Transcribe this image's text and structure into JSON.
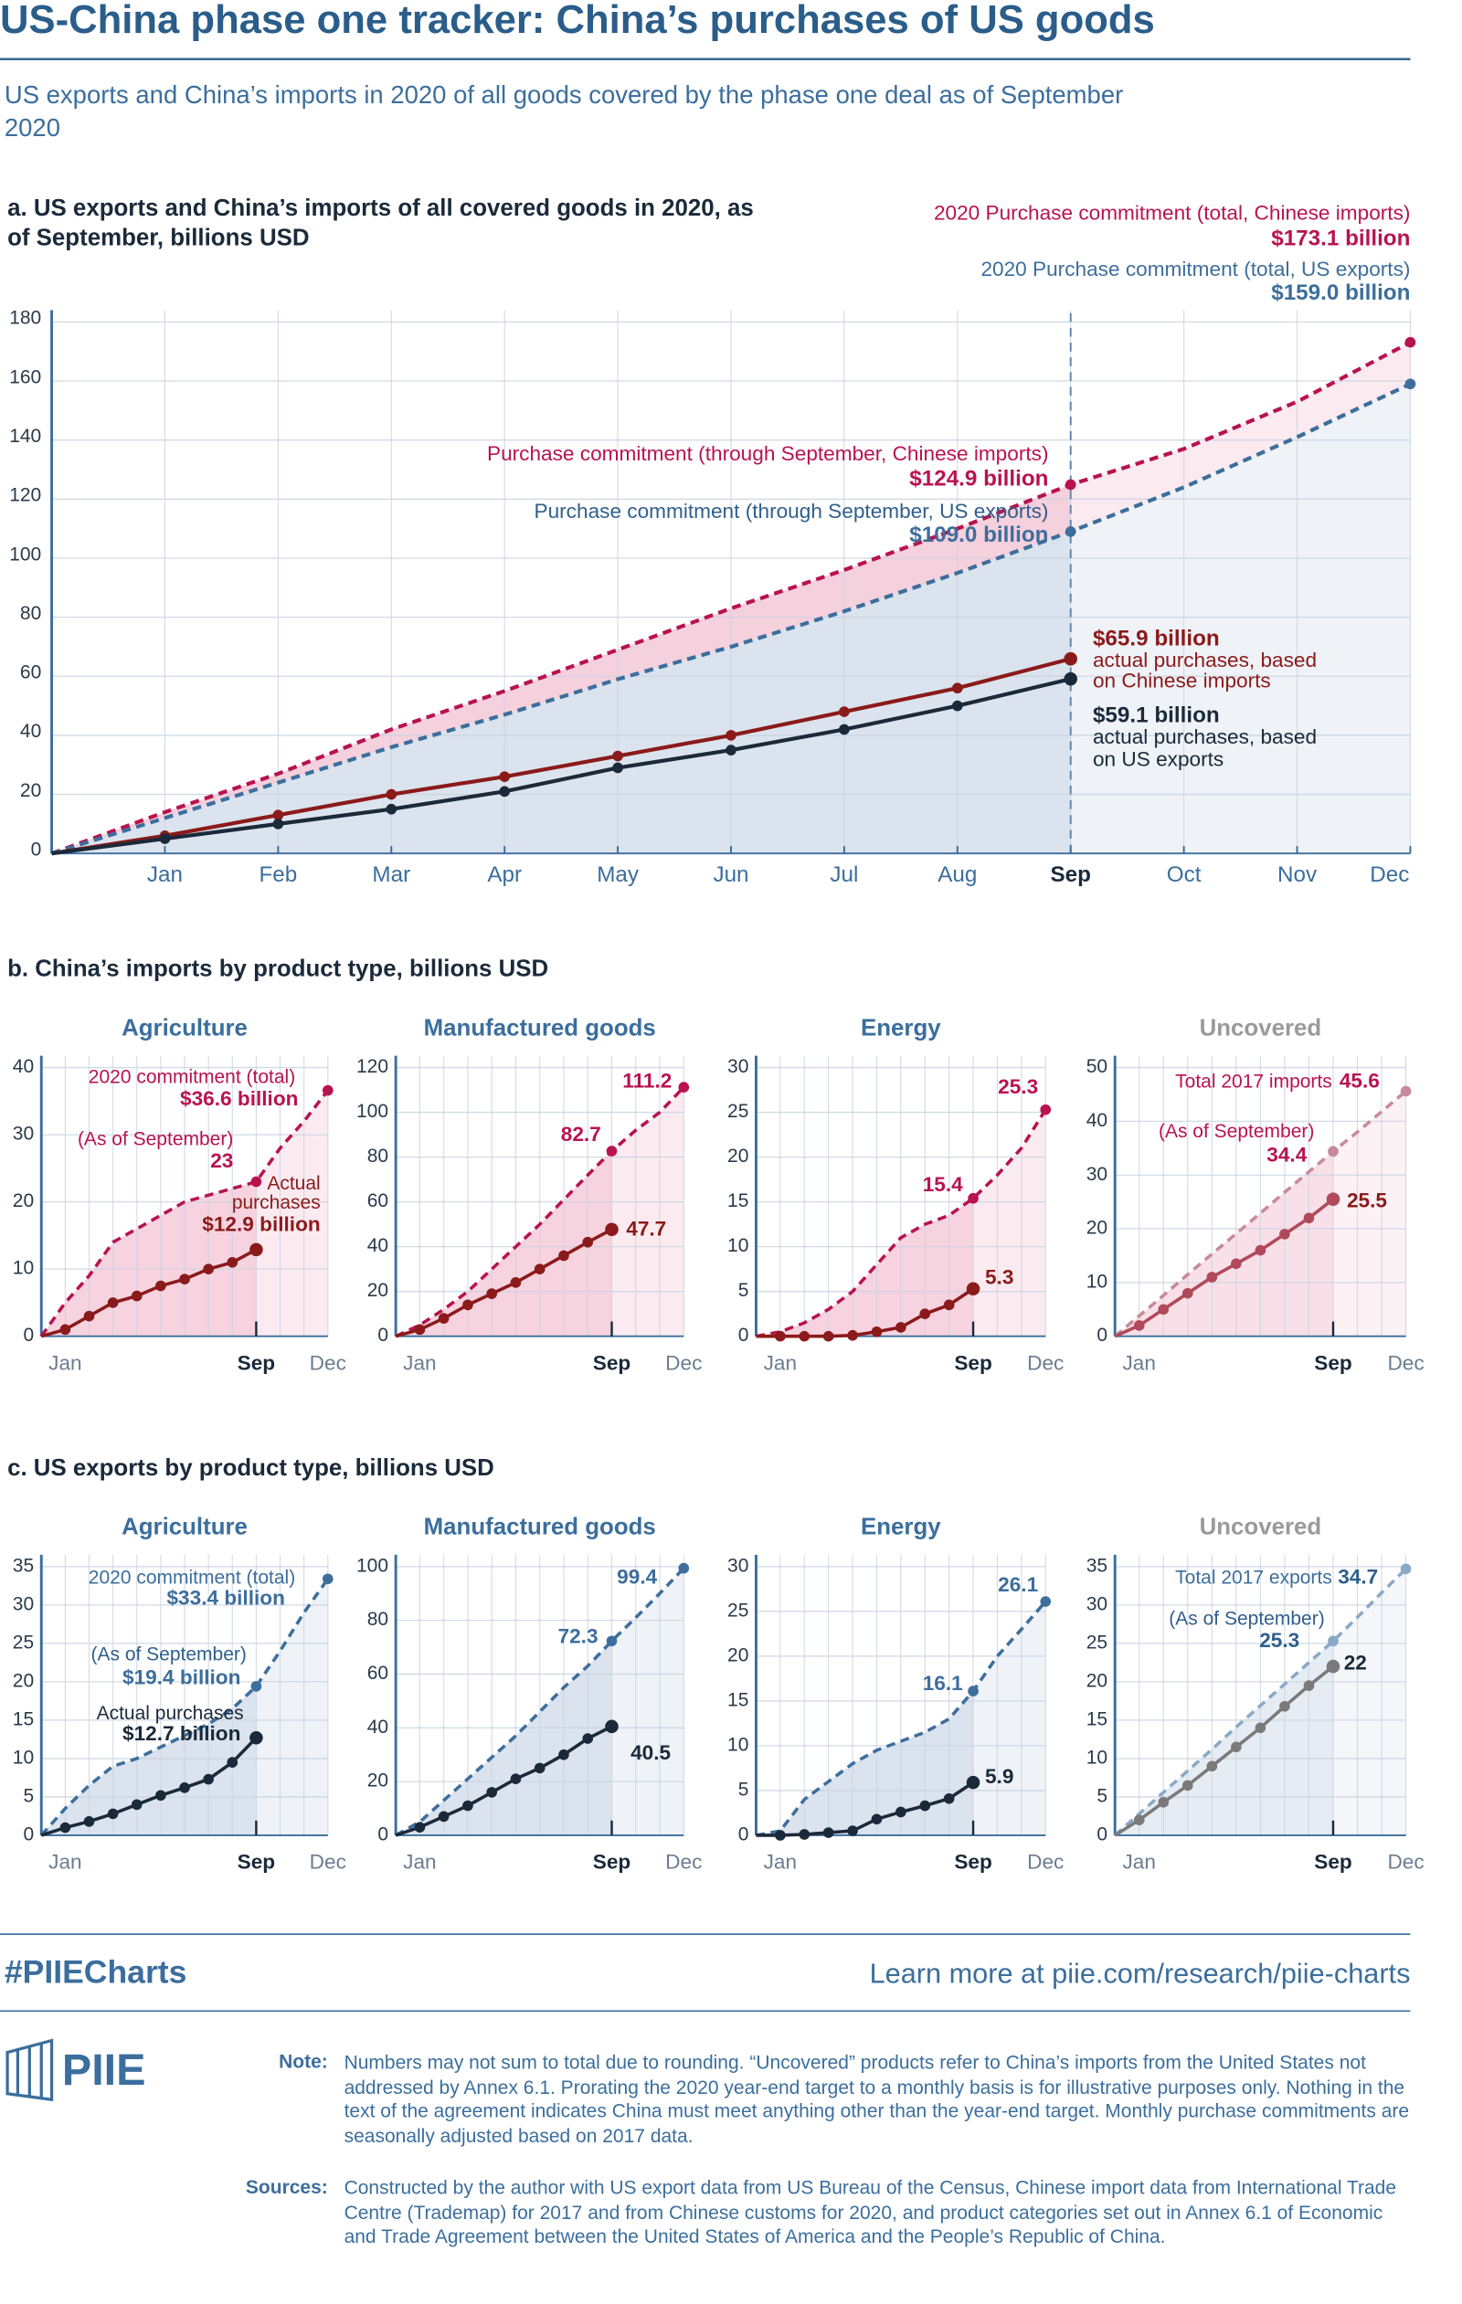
{
  "title": "US-China phase one tracker: China’s purchases of US goods",
  "subtitle": "US exports and China’s imports in 2020 of all goods covered by the phase one deal as of September 2020",
  "section_b_title": "b. China’s imports by product type, billions USD",
  "section_c_title": "c. US exports by product type, billions USD",
  "hashtag": "#PIIECharts",
  "learn_more": "Learn more at piie.com/research/piie-charts",
  "logo": "PIIE",
  "note_label": "Note:",
  "note": "Numbers may not sum to total due to rounding. “Uncovered” products refer to China’s imports from the United States not addressed by Annex 6.1. Prorating the 2020 year-end target to a monthly basis is for illustrative purposes only. Nothing in the text of the agreement indicates China must meet anything other than the year-end target. Monthly purchase commitments are seasonally adjusted based on 2017 data.",
  "sources_label": "Sources:",
  "sources": "Constructed by the author with US export data from US Bureau of the Census, Chinese import data from International Trade Centre (Trademap) for 2017 and from Chinese customs for 2020, and product categories set out in Annex 6.1 of Economic and Trade Agreement between the United States of America and the People’s Republic of China.",
  "chart_data": [
    {
      "type": "line",
      "title": "a. US exports and China’s imports of all covered goods in 2020, as of September, billions USD",
      "categories": [
        null,
        "Jan",
        "Feb",
        "Mar",
        "Apr",
        "May",
        "Jun",
        "Jul",
        "Aug",
        "Sep",
        "Oct",
        "Nov",
        "Dec"
      ],
      "ylim": [
        0,
        180
      ],
      "yticks": [
        0,
        20,
        40,
        60,
        80,
        100,
        120,
        140,
        160,
        180
      ],
      "grid": true,
      "series": [
        {
          "color": "#b8134f",
          "fill": "#f5d0dd",
          "dash": true,
          "values": [
            0,
            14,
            27,
            42,
            55,
            69,
            83,
            96,
            110,
            124.9,
            137,
            153,
            173.1
          ],
          "value_labels": [
            null,
            null,
            null,
            null,
            null,
            null,
            null,
            null,
            null,
            "$124.9 billion",
            null,
            null,
            "$173.1 billion"
          ]
        },
        {
          "color": "#3d6e9c",
          "fill": "#dbe3ee",
          "dash": true,
          "values": [
            0,
            12,
            24,
            36,
            47,
            59,
            70,
            82,
            95,
            109.0,
            124,
            141,
            159.0
          ],
          "value_labels": [
            null,
            null,
            null,
            null,
            null,
            null,
            null,
            null,
            null,
            "$109.0 billion",
            null,
            null,
            "$159.0 billion"
          ]
        },
        {
          "color": "#8b1a1a",
          "values": [
            0,
            6,
            13,
            20,
            26,
            33,
            40,
            48,
            56,
            65.9,
            null,
            null,
            null
          ],
          "value_labels": [
            null,
            null,
            null,
            null,
            null,
            null,
            null,
            null,
            null,
            "$65.9 billion",
            null,
            null,
            null
          ]
        },
        {
          "color": "#1b2a3a",
          "values": [
            0,
            5,
            10,
            15,
            21,
            29,
            35,
            42,
            50,
            59.1,
            null,
            null,
            null
          ],
          "value_labels": [
            null,
            null,
            null,
            null,
            null,
            null,
            null,
            null,
            null,
            "$59.1 billion",
            null,
            null,
            null
          ]
        }
      ],
      "annotations": [
        {
          "text": "2020 Purchase commitment (total, Chinese imports)",
          "color": "#b8134f"
        },
        {
          "text": "2020 Purchase commitment (total, US exports)",
          "color": "#3d6e9c"
        },
        {
          "text": "Purchase commitment (through September, Chinese imports)",
          "color": "#b8134f"
        },
        {
          "text": "Purchase commitment (through September, US exports)",
          "color": "#2f5f8c"
        },
        {
          "text": "actual purchases, based",
          "color": "#8b1a1a"
        },
        {
          "text": "on Chinese imports",
          "color": "#8b1a1a"
        },
        {
          "text": "actual purchases, based",
          "color": "#1b2a3a"
        },
        {
          "text": "on US exports",
          "color": "#1b2a3a"
        }
      ]
    },
    {
      "type": "line",
      "title": "Agriculture",
      "title_color": "#3b6e9d",
      "categories": [
        null,
        "Jan",
        null,
        null,
        null,
        null,
        null,
        null,
        null,
        "Sep",
        null,
        null,
        "Dec"
      ],
      "ylim": [
        0,
        40
      ],
      "yticks": [
        0,
        10,
        20,
        30,
        40
      ],
      "grid": true,
      "series": [
        {
          "color": "#b8134f",
          "fill": "#f7d3df",
          "dash": true,
          "values": [
            0,
            5,
            9,
            14,
            16,
            18,
            20,
            21,
            22,
            23,
            28,
            32,
            36.6
          ],
          "value_labels": [
            null,
            null,
            null,
            null,
            null,
            null,
            null,
            null,
            null,
            null,
            null,
            null,
            "$36.6 billion"
          ]
        },
        {
          "color": "#8b1a1a",
          "values": [
            0,
            1,
            3,
            5,
            6,
            7.5,
            8.5,
            10,
            11,
            12.9,
            null,
            null,
            null
          ],
          "value_labels": [
            null,
            null,
            null,
            null,
            null,
            null,
            null,
            null,
            null,
            "$12.9 billion",
            null,
            null,
            null
          ]
        }
      ],
      "annotations": [
        {
          "text": "2020 commitment (total)",
          "color": "#b8134f"
        },
        {
          "text": "(As of September)",
          "color": "#b8134f"
        },
        {
          "text": "Actual",
          "color": "#8b1a1a"
        },
        {
          "text": "purchases",
          "color": "#8b1a1a"
        }
      ]
    },
    {
      "type": "line",
      "title": "Manufactured goods",
      "title_color": "#3b6e9d",
      "categories": [
        null,
        "Jan",
        null,
        null,
        null,
        null,
        null,
        null,
        null,
        "Sep",
        null,
        null,
        "Dec"
      ],
      "ylim": [
        0,
        120
      ],
      "yticks": [
        0,
        20,
        40,
        60,
        80,
        100,
        120
      ],
      "grid": true,
      "series": [
        {
          "color": "#b8134f",
          "fill": "#f7d3df",
          "dash": true,
          "values": [
            0,
            5,
            12,
            20,
            30,
            40,
            50,
            61,
            72,
            82.7,
            92,
            100,
            111.2
          ]
        },
        {
          "color": "#8b1a1a",
          "values": [
            0,
            3,
            8,
            14,
            19,
            24,
            30,
            36,
            42,
            47.7,
            null,
            null,
            null
          ]
        }
      ]
    },
    {
      "type": "line",
      "title": "Energy",
      "title_color": "#3b6e9d",
      "categories": [
        null,
        "Jan",
        null,
        null,
        null,
        null,
        null,
        null,
        null,
        "Sep",
        null,
        null,
        "Dec"
      ],
      "ylim": [
        0,
        30
      ],
      "yticks": [
        0,
        5,
        10,
        15,
        20,
        25,
        30
      ],
      "grid": true,
      "series": [
        {
          "color": "#b8134f",
          "fill": "#f7d3df",
          "dash": true,
          "values": [
            0,
            0.5,
            1.5,
            3,
            5,
            8,
            11,
            12.5,
            13.5,
            15.4,
            18,
            21,
            25.3
          ]
        },
        {
          "color": "#8b1a1a",
          "values": [
            0,
            0,
            0,
            0,
            0.1,
            0.5,
            1,
            2.5,
            3.5,
            5.3,
            null,
            null,
            null
          ]
        }
      ]
    },
    {
      "type": "line",
      "title": "Uncovered",
      "title_color": "#9a9a9a",
      "categories": [
        null,
        "Jan",
        null,
        null,
        null,
        null,
        null,
        null,
        null,
        "Sep",
        null,
        null,
        "Dec"
      ],
      "ylim": [
        0,
        50
      ],
      "yticks": [
        0,
        10,
        20,
        30,
        40,
        50
      ],
      "grid": true,
      "series": [
        {
          "color": "#c88a9b",
          "label_color": "#b8134f",
          "fill": "#f9e0e8",
          "dash": true,
          "values": [
            0,
            3.8,
            7.6,
            11.5,
            15.3,
            19.1,
            22.9,
            26.8,
            30.6,
            34.4,
            38,
            41.8,
            45.6
          ]
        },
        {
          "color": "#b04a5a",
          "label_color": "#8b1a1a",
          "values": [
            0,
            2,
            5,
            8,
            11,
            13.5,
            16,
            19,
            22,
            25.5,
            null,
            null,
            null
          ]
        }
      ],
      "annotations": [
        {
          "text": "Total 2017 imports",
          "color": "#b8134f"
        },
        {
          "text": "(As of September)",
          "color": "#b8134f"
        }
      ]
    },
    {
      "type": "line",
      "title": "Agriculture",
      "title_color": "#3b6e9d",
      "categories": [
        null,
        "Jan",
        null,
        null,
        null,
        null,
        null,
        null,
        null,
        "Sep",
        null,
        null,
        "Dec"
      ],
      "ylim": [
        0,
        35
      ],
      "yticks": [
        0,
        5,
        10,
        15,
        20,
        25,
        30,
        35
      ],
      "grid": true,
      "series": [
        {
          "color": "#3d6e9c",
          "fill": "#dbe3ee",
          "dash": true,
          "values": [
            0,
            3.5,
            6.5,
            9,
            10,
            11.5,
            13,
            14.5,
            16.5,
            19.4,
            24,
            29,
            33.4
          ],
          "value_labels": [
            null,
            null,
            null,
            null,
            null,
            null,
            null,
            null,
            null,
            "$19.4 billion",
            null,
            null,
            "$33.4 billion"
          ]
        },
        {
          "color": "#1b2a3a",
          "values": [
            0,
            1,
            1.8,
            2.8,
            4,
            5.2,
            6.2,
            7.3,
            9.5,
            12.7,
            null,
            null,
            null
          ],
          "value_labels": [
            null,
            null,
            null,
            null,
            null,
            null,
            null,
            null,
            null,
            "$12.7 billion",
            null,
            null,
            null
          ]
        }
      ],
      "annotations": [
        {
          "text": "2020 commitment (total)",
          "color": "#3d6e9c"
        },
        {
          "text": "(As of September)",
          "color": "#2f5f8c"
        },
        {
          "text": "Actual purchases",
          "color": "#1b2a3a"
        }
      ]
    },
    {
      "type": "line",
      "title": "Manufactured goods",
      "title_color": "#3b6e9d",
      "categories": [
        null,
        "Jan",
        null,
        null,
        null,
        null,
        null,
        null,
        null,
        "Sep",
        null,
        null,
        "Dec"
      ],
      "ylim": [
        0,
        100
      ],
      "yticks": [
        0,
        20,
        40,
        60,
        80,
        100
      ],
      "grid": true,
      "series": [
        {
          "color": "#3d6e9c",
          "fill": "#dbe3ee",
          "dash": true,
          "values": [
            0,
            5,
            13,
            21,
            29,
            37,
            46,
            55,
            63,
            72.3,
            81,
            90,
            99.4
          ]
        },
        {
          "color": "#1b2a3a",
          "values": [
            0,
            3,
            7,
            11,
            16,
            21,
            25,
            30,
            36,
            40.5,
            null,
            null,
            null
          ]
        }
      ]
    },
    {
      "type": "line",
      "title": "Energy",
      "title_color": "#3b6e9d",
      "categories": [
        null,
        "Jan",
        null,
        null,
        null,
        null,
        null,
        null,
        null,
        "Sep",
        null,
        null,
        "Dec"
      ],
      "ylim": [
        0,
        30
      ],
      "yticks": [
        0,
        5,
        10,
        15,
        20,
        25,
        30
      ],
      "grid": true,
      "series": [
        {
          "color": "#3d6e9c",
          "fill": "#dbe3ee",
          "dash": true,
          "values": [
            0,
            0.5,
            4,
            6,
            8,
            9.5,
            10.5,
            11.5,
            13,
            16.1,
            20,
            23,
            26.1
          ]
        },
        {
          "color": "#1b2a3a",
          "values": [
            0,
            0,
            0.1,
            0.3,
            0.5,
            1.8,
            2.6,
            3.3,
            4.1,
            5.9,
            null,
            null,
            null
          ]
        }
      ]
    },
    {
      "type": "line",
      "title": "Uncovered",
      "title_color": "#9a9a9a",
      "categories": [
        null,
        "Jan",
        null,
        null,
        null,
        null,
        null,
        null,
        null,
        "Sep",
        null,
        null,
        "Dec"
      ],
      "ylim": [
        0,
        35
      ],
      "yticks": [
        0,
        5,
        10,
        15,
        20,
        25,
        30,
        35
      ],
      "grid": true,
      "series": [
        {
          "color": "#8aa9c6",
          "label_color": "#2f5f8c",
          "fill": "#e6ecf3",
          "dash": true,
          "values": [
            0,
            2.8,
            5.6,
            8.4,
            11.2,
            14.1,
            16.9,
            19.7,
            22.5,
            25.3,
            28.4,
            31.6,
            34.7
          ]
        },
        {
          "color": "#7a7a7a",
          "label_color": "#1b2a3a",
          "values": [
            0,
            2,
            4.3,
            6.5,
            9,
            11.5,
            14,
            16.8,
            19.5,
            22.0,
            null,
            null,
            null
          ]
        }
      ],
      "annotations": [
        {
          "text": "Total 2017 exports",
          "color": "#3d6e9c"
        },
        {
          "text": "(As of September)",
          "color": "#2f5f8c"
        }
      ]
    }
  ]
}
